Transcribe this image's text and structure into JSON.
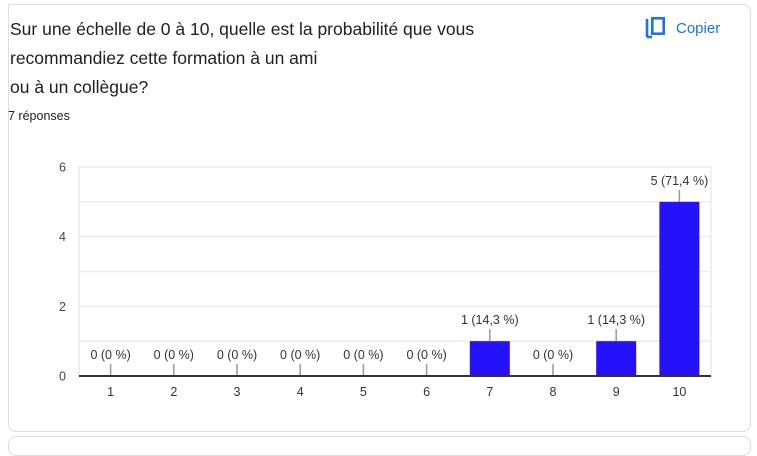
{
  "question": {
    "title": "Sur une échelle de 0 à 10, quelle est la probabilité que vous\nrecommandiez cette formation à un ami\nou à un collègue?",
    "response_count": "7 réponses"
  },
  "toolbar": {
    "copy_label": "Copier",
    "copy_icon": "copy-icon"
  },
  "colors": {
    "bar": "#2611fc",
    "accent": "#1a73e8",
    "grid": "#ebebeb",
    "axis": "#333333"
  },
  "chart_data": {
    "type": "bar",
    "title": "",
    "xlabel": "",
    "ylabel": "",
    "categories": [
      "1",
      "2",
      "3",
      "4",
      "5",
      "6",
      "7",
      "8",
      "9",
      "10"
    ],
    "values": [
      0,
      0,
      0,
      0,
      0,
      0,
      1,
      0,
      1,
      5
    ],
    "data_labels": [
      "0 (0 %)",
      "0 (0 %)",
      "0 (0 %)",
      "0 (0 %)",
      "0 (0 %)",
      "0 (0 %)",
      "1 (14,3 %)",
      "0 (0 %)",
      "1 (14,3 %)",
      "5 (71,4 %)"
    ],
    "yticks": [
      0,
      2,
      4,
      6
    ],
    "ylim": [
      0,
      6
    ],
    "grid": true,
    "legend": "none"
  }
}
